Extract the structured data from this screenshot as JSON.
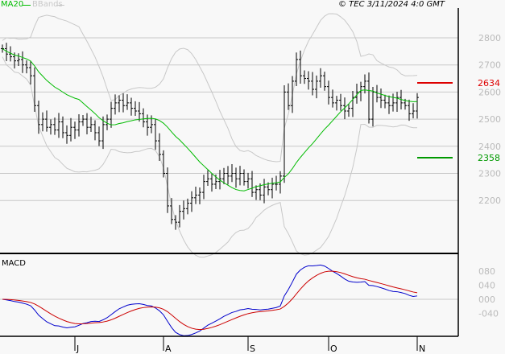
{
  "header": {
    "ma_label": "MA20",
    "bb_label": "BBands",
    "copyright": "© TEC 3/11/2024 4:0 GMT"
  },
  "colors": {
    "ma": "#00bb00",
    "bb": "#c8c8c8",
    "macd": "#0000cc",
    "signal": "#cc0000",
    "resistance": "#dd0000",
    "support": "#009900"
  },
  "chart_data": [
    {
      "type": "ohlc",
      "title": "Price",
      "y_ticks": [
        "2800",
        "2700",
        "2600",
        "2500",
        "2400",
        "2300",
        "2200"
      ],
      "ylim": [
        2090,
        2900
      ],
      "x_ticks": [
        "J",
        "A",
        "S",
        "O",
        "N"
      ],
      "x_tick_bars": [
        18,
        40,
        61,
        81,
        103
      ],
      "closes": [
        2760,
        2740,
        2730,
        2715,
        2720,
        2700,
        2690,
        2660,
        2550,
        2480,
        2500,
        2470,
        2480,
        2460,
        2490,
        2450,
        2440,
        2470,
        2460,
        2490,
        2500,
        2470,
        2480,
        2450,
        2420,
        2480,
        2500,
        2540,
        2560,
        2570,
        2550,
        2560,
        2540,
        2530,
        2520,
        2490,
        2470,
        2480,
        2420,
        2370,
        2300,
        2180,
        2130,
        2120,
        2160,
        2170,
        2190,
        2210,
        2220,
        2230,
        2270,
        2280,
        2260,
        2270,
        2280,
        2300,
        2290,
        2300,
        2280,
        2300,
        2270,
        2280,
        2230,
        2240,
        2220,
        2250,
        2240,
        2260,
        2260,
        2290,
        2600,
        2550,
        2640,
        2720,
        2660,
        2650,
        2640,
        2610,
        2640,
        2660,
        2620,
        2580,
        2560,
        2570,
        2550,
        2530,
        2540,
        2580,
        2600,
        2620,
        2640,
        2500,
        2600,
        2580,
        2570,
        2560,
        2550,
        2560,
        2580,
        2560,
        2550,
        2520,
        2530,
        2580
      ],
      "resistance": {
        "label": "2634",
        "value": 2634
      },
      "support": {
        "label": "2358",
        "value": 2358
      }
    },
    {
      "type": "line",
      "title": "MACD",
      "y_ticks": [
        "080",
        "040",
        "000",
        "-040"
      ],
      "y_tick_values": [
        80,
        40,
        0,
        -40
      ],
      "series": [
        {
          "name": "MACD"
        },
        {
          "name": "Signal"
        }
      ]
    }
  ]
}
